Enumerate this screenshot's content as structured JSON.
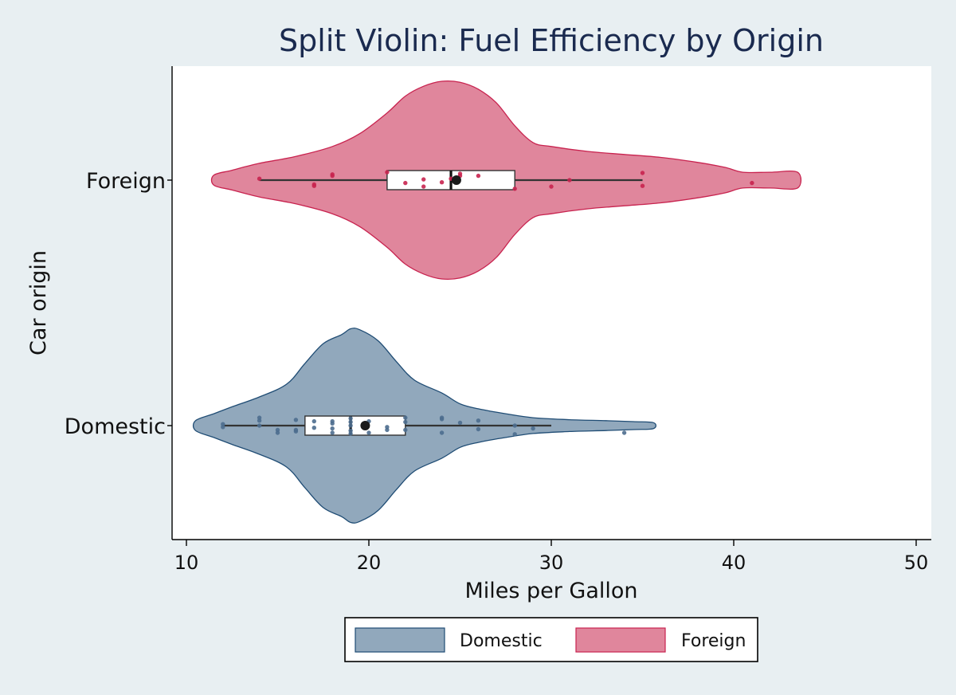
{
  "chart_data": {
    "type": "violin",
    "title": "Split Violin: Fuel Efficiency by Origin",
    "xlabel": "Miles per Gallon",
    "ylabel": "Car origin",
    "xlim": [
      9,
      51
    ],
    "xticks": [
      10,
      20,
      30,
      40,
      50
    ],
    "grid": false,
    "legend_position": "bottom-center",
    "series": [
      {
        "name": "Foreign",
        "color": "#e0869c",
        "stroke": "#c8234f",
        "point_color": "#c8234f",
        "range": [
          11.5,
          43.5
        ],
        "whiskers": [
          14,
          35
        ],
        "box": [
          21,
          28
        ],
        "median": 24.5,
        "mean": 24.8,
        "density": [
          [
            11.5,
            0.05
          ],
          [
            12.5,
            0.1
          ],
          [
            14,
            0.17
          ],
          [
            16,
            0.24
          ],
          [
            18,
            0.34
          ],
          [
            19.5,
            0.47
          ],
          [
            21,
            0.68
          ],
          [
            22,
            0.85
          ],
          [
            23,
            0.95
          ],
          [
            24,
            1.0
          ],
          [
            25,
            0.99
          ],
          [
            26,
            0.92
          ],
          [
            27,
            0.78
          ],
          [
            28,
            0.55
          ],
          [
            29,
            0.38
          ],
          [
            30,
            0.34
          ],
          [
            32,
            0.29
          ],
          [
            34,
            0.26
          ],
          [
            36,
            0.23
          ],
          [
            38,
            0.18
          ],
          [
            39.5,
            0.13
          ],
          [
            40.5,
            0.08
          ],
          [
            42,
            0.08
          ],
          [
            43.5,
            0.08
          ]
        ],
        "points": [
          [
            14,
            0.02
          ],
          [
            17,
            -0.06
          ],
          [
            17,
            -0.08
          ],
          [
            18,
            0.06
          ],
          [
            18,
            0.08
          ],
          [
            21,
            0.11
          ],
          [
            22,
            -0.04
          ],
          [
            23,
            0.01
          ],
          [
            23,
            -0.09
          ],
          [
            24,
            -0.03
          ],
          [
            24.5,
            0.02
          ],
          [
            25,
            0.09
          ],
          [
            25,
            0.06
          ],
          [
            26,
            0.06
          ],
          [
            28,
            -0.12
          ],
          [
            30,
            -0.09
          ],
          [
            31,
            0.0
          ],
          [
            35,
            0.1
          ],
          [
            35,
            -0.08
          ],
          [
            41,
            -0.04
          ]
        ]
      },
      {
        "name": "Domestic",
        "color": "#91a8bc",
        "stroke": "#1f4c74",
        "point_color": "#4c6d8e",
        "range": [
          10.5,
          35.6
        ],
        "whiskers": [
          12,
          30
        ],
        "box": [
          16.5,
          22
        ],
        "median": 19,
        "mean": 19.8,
        "density": [
          [
            10.5,
            0.05
          ],
          [
            11.5,
            0.12
          ],
          [
            12.5,
            0.19
          ],
          [
            14,
            0.29
          ],
          [
            15.5,
            0.42
          ],
          [
            16.5,
            0.63
          ],
          [
            17.5,
            0.83
          ],
          [
            18.5,
            0.92
          ],
          [
            19,
            0.98
          ],
          [
            19.5,
            0.97
          ],
          [
            20.5,
            0.86
          ],
          [
            21.5,
            0.65
          ],
          [
            22.5,
            0.46
          ],
          [
            24,
            0.33
          ],
          [
            25,
            0.22
          ],
          [
            26,
            0.17
          ],
          [
            27.5,
            0.12
          ],
          [
            29,
            0.08
          ],
          [
            31,
            0.06
          ],
          [
            33,
            0.05
          ],
          [
            34.5,
            0.04
          ],
          [
            35.6,
            0.03
          ]
        ],
        "points": [
          [
            12,
            0.02
          ],
          [
            12,
            -0.02
          ],
          [
            14,
            0.11
          ],
          [
            14,
            0.07
          ],
          [
            14,
            0.0
          ],
          [
            15,
            -0.06
          ],
          [
            15,
            -0.1
          ],
          [
            16,
            0.08
          ],
          [
            16,
            -0.06
          ],
          [
            16,
            -0.08
          ],
          [
            17,
            0.06
          ],
          [
            17,
            -0.03
          ],
          [
            18,
            0.06
          ],
          [
            18,
            0.03
          ],
          [
            18,
            -0.04
          ],
          [
            18,
            -0.1
          ],
          [
            19,
            0.1
          ],
          [
            19,
            0.05
          ],
          [
            19,
            0.0
          ],
          [
            19,
            -0.07
          ],
          [
            19,
            -0.11
          ],
          [
            20,
            0.06
          ],
          [
            20,
            -0.1
          ],
          [
            21,
            -0.02
          ],
          [
            21,
            -0.06
          ],
          [
            22,
            0.11
          ],
          [
            22,
            0.05
          ],
          [
            22,
            -0.06
          ],
          [
            24,
            0.09
          ],
          [
            24,
            0.11
          ],
          [
            24,
            -0.1
          ],
          [
            25,
            0.04
          ],
          [
            26,
            0.07
          ],
          [
            26,
            -0.05
          ],
          [
            28,
            0.0
          ],
          [
            28,
            -0.12
          ],
          [
            29,
            -0.04
          ],
          [
            34,
            -0.1
          ]
        ]
      }
    ],
    "legend": [
      {
        "label": "Domestic",
        "color": "#91a8bc",
        "stroke": "#1f4c74"
      },
      {
        "label": "Foreign",
        "color": "#e0869c",
        "stroke": "#c8234f"
      }
    ]
  }
}
